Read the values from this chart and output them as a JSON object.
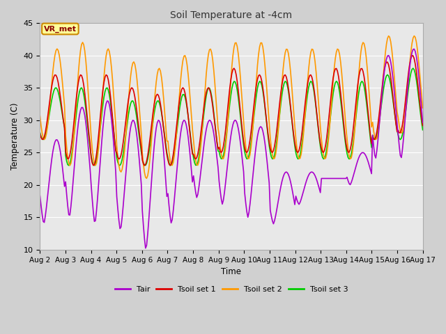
{
  "title": "Soil Temperature at -4cm",
  "xlabel": "Time",
  "ylabel": "Temperature (C)",
  "ylim": [
    10,
    45
  ],
  "xlim": [
    0,
    15
  ],
  "fig_bg": "#d0d0d0",
  "plot_bg": "#e8e8e8",
  "series": {
    "Tair": {
      "color": "#aa00cc",
      "lw": 1.2
    },
    "Tsoil set 1": {
      "color": "#dd0000",
      "lw": 1.2
    },
    "Tsoil set 2": {
      "color": "#ff9900",
      "lw": 1.2
    },
    "Tsoil set 3": {
      "color": "#00cc00",
      "lw": 1.2
    }
  },
  "xtick_labels": [
    "Aug 2",
    "Aug 3",
    "Aug 4",
    "Aug 5",
    "Aug 6",
    "Aug 7",
    "Aug 8",
    "Aug 9",
    "Aug 10",
    "Aug 11",
    "Aug 12",
    "Aug 13",
    "Aug 14",
    "Aug 15",
    "Aug 16",
    "Aug 17"
  ],
  "ytick_labels": [
    10,
    15,
    20,
    25,
    30,
    35,
    40,
    45
  ],
  "annotation_text": "VR_met",
  "annotation_bg": "#ffff99",
  "annotation_border": "#cc8800"
}
